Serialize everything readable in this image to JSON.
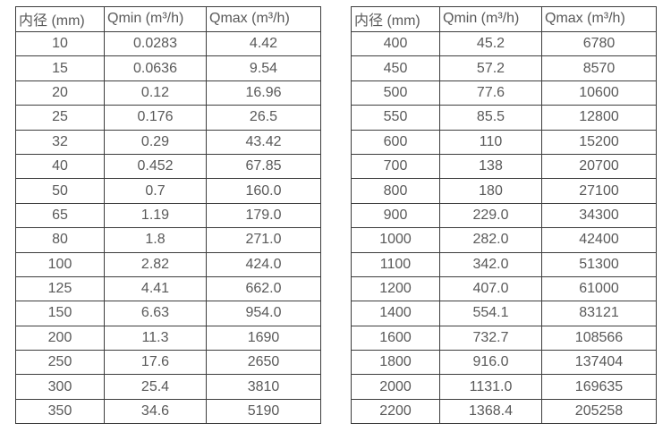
{
  "page": {
    "background": "#ffffff",
    "border_color": "#3d3d3d",
    "text_color": "#595959"
  },
  "tables": [
    {
      "name": "flow-spec-table-small-diameters",
      "headers": [
        "内径 (mm)",
        "Qmin (m³/h)",
        "Qmax (m³/h)"
      ],
      "rows": [
        [
          "10",
          "0.0283",
          "4.42"
        ],
        [
          "15",
          "0.0636",
          "9.54"
        ],
        [
          "20",
          "0.12",
          "16.96"
        ],
        [
          "25",
          "0.176",
          "26.5"
        ],
        [
          "32",
          "0.29",
          "43.42"
        ],
        [
          "40",
          "0.452",
          "67.85"
        ],
        [
          "50",
          "0.7",
          "160.0"
        ],
        [
          "65",
          "1.19",
          "179.0"
        ],
        [
          "80",
          "1.8",
          "271.0"
        ],
        [
          "100",
          "2.82",
          "424.0"
        ],
        [
          "125",
          "4.41",
          "662.0"
        ],
        [
          "150",
          "6.63",
          "954.0"
        ],
        [
          "200",
          "11.3",
          "1690"
        ],
        [
          "250",
          "17.6",
          "2650"
        ],
        [
          "300",
          "25.4",
          "3810"
        ],
        [
          "350",
          "34.6",
          "5190"
        ]
      ]
    },
    {
      "name": "flow-spec-table-large-diameters",
      "headers": [
        "内径 (mm)",
        "Qmin (m³/h)",
        "Qmax (m³/h)"
      ],
      "rows": [
        [
          "400",
          "45.2",
          "6780"
        ],
        [
          "450",
          "57.2",
          "8570"
        ],
        [
          "500",
          "77.6",
          "10600"
        ],
        [
          "550",
          "85.5",
          "12800"
        ],
        [
          "600",
          "110",
          "15200"
        ],
        [
          "700",
          "138",
          "20700"
        ],
        [
          "800",
          "180",
          "27100"
        ],
        [
          "900",
          "229.0",
          "34300"
        ],
        [
          "1000",
          "282.0",
          "42400"
        ],
        [
          "1100",
          "342.0",
          "51300"
        ],
        [
          "1200",
          "407.0",
          "61000"
        ],
        [
          "1400",
          "554.1",
          "83121"
        ],
        [
          "1600",
          "732.7",
          "108566"
        ],
        [
          "1800",
          "916.0",
          "137404"
        ],
        [
          "2000",
          "1131.0",
          "169635"
        ],
        [
          "2200",
          "1368.4",
          "205258"
        ]
      ]
    }
  ]
}
